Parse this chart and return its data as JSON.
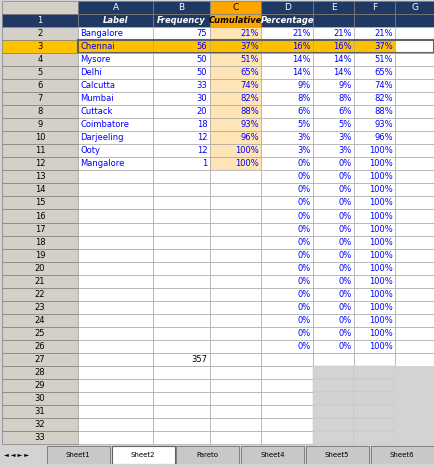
{
  "col_letters": [
    "",
    "A",
    "B",
    "C",
    "D",
    "E",
    "F",
    "G"
  ],
  "header_cells": [
    "Label",
    "Frequency",
    "Cumulative",
    "Percentage",
    "",
    "",
    ""
  ],
  "city_rows": [
    [
      "Bangalore",
      "75",
      "21%",
      "21%",
      "21%",
      "21%"
    ],
    [
      "Chennai",
      "56",
      "37%",
      "16%",
      "16%",
      "37%"
    ],
    [
      "Mysore",
      "50",
      "51%",
      "14%",
      "14%",
      "51%"
    ],
    [
      "Delhi",
      "50",
      "65%",
      "14%",
      "14%",
      "65%"
    ],
    [
      "Calcutta",
      "33",
      "74%",
      "9%",
      "9%",
      "74%"
    ],
    [
      "Mumbai",
      "30",
      "82%",
      "8%",
      "8%",
      "82%"
    ],
    [
      "Cuttack",
      "20",
      "88%",
      "6%",
      "6%",
      "88%"
    ],
    [
      "Coimbatore",
      "18",
      "93%",
      "5%",
      "5%",
      "93%"
    ],
    [
      "Darjeeling",
      "12",
      "96%",
      "3%",
      "3%",
      "96%"
    ],
    [
      "Ooty",
      "12",
      "100%",
      "3%",
      "3%",
      "100%"
    ],
    [
      "Mangalore",
      "1",
      "100%",
      "0%",
      "0%",
      "100%"
    ]
  ],
  "empty_de_rows": 14,
  "sum_row": 27,
  "sum_value": "357",
  "total_data_rows": 33,
  "selected_row": 3,
  "header_bg": "#1F3864",
  "header_text": "#FFFFFF",
  "col_C_header_bg": "#FFA500",
  "col_C_header_text": "#000000",
  "selected_row_bg": "#FFC000",
  "col_C_data_bg": "#FFE4B5",
  "row_num_bg": "#D4D0C8",
  "row_num_text": "#000000",
  "data_text": "#0000FF",
  "cell_bg": "#FFFFFF",
  "grid_color": "#B0B0B0",
  "fig_bg": "#D3D3D3",
  "tab_active_bg": "#FFFFFF",
  "tab_inactive_bg": "#C8C8C8",
  "tabs": [
    "Sheet1",
    "Sheet2",
    "Pareto",
    "Sheet4",
    "Sheet5",
    "Sheet6"
  ],
  "active_tab": "Sheet2",
  "col_letter_row_bg": "#D4D0C8"
}
